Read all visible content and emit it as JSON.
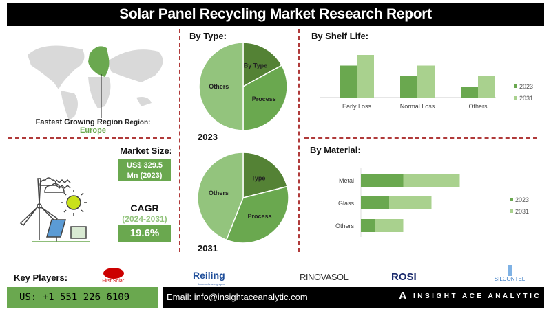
{
  "title": "Solar Panel Recycling Market Research Report",
  "region": {
    "label": "Fastest Growing Region",
    "suffix": "Region:",
    "value": "Europe"
  },
  "market_size": {
    "label": "Market Size:",
    "value_line1": "US$ 329.5",
    "value_line2": "Mn (2023)"
  },
  "cagr": {
    "label": "CAGR",
    "period": "(2024-2031)",
    "value": "19.6%"
  },
  "colors": {
    "dark_green": "#548235",
    "mid_green": "#6aa84f",
    "light_green": "#93c47d",
    "pale_green": "#a9d18e",
    "divider_red": "#b03a3a"
  },
  "chart_data": [
    {
      "type": "pie",
      "title": "By Type:",
      "year": "2023",
      "slices": [
        {
          "label": "By Type",
          "value": 17,
          "color": "#548235"
        },
        {
          "label": "Process",
          "value": 33,
          "color": "#6aa84f"
        },
        {
          "label": "Others",
          "value": 50,
          "color": "#93c47d"
        }
      ]
    },
    {
      "type": "pie",
      "year": "2031",
      "slices": [
        {
          "label": "Type",
          "value": 21,
          "color": "#548235"
        },
        {
          "label": "Process",
          "value": 35,
          "color": "#6aa84f"
        },
        {
          "label": "Others",
          "value": 44,
          "color": "#93c47d"
        }
      ]
    },
    {
      "type": "bar",
      "title": "By Shelf Life:",
      "categories": [
        "Early Loss",
        "Normal Loss",
        "Others"
      ],
      "series": [
        {
          "name": "2023",
          "values": [
            3,
            2,
            1
          ],
          "color": "#6aa84f"
        },
        {
          "name": "2031",
          "values": [
            4,
            3,
            2
          ],
          "color": "#a9d18e"
        }
      ],
      "legend": "right"
    },
    {
      "type": "bar",
      "orientation": "horizontal",
      "stacked": true,
      "title": "By Material:",
      "categories": [
        "Metal",
        "Glass",
        "Others"
      ],
      "series": [
        {
          "name": "2023",
          "values": [
            3,
            2,
            1
          ],
          "color": "#6aa84f"
        },
        {
          "name": "2031",
          "values": [
            4,
            3,
            2
          ],
          "color": "#a9d18e"
        }
      ],
      "legend": "right"
    }
  ],
  "key_players": {
    "label": "Key Players:",
    "companies": [
      "First Solar.",
      "Reiling",
      "Unternehmensgruppe",
      "RINOVASOL",
      "ROSI",
      "SILCONTEL"
    ]
  },
  "footer": {
    "phone": "US: +1 551 226 6109",
    "email": "Email: info@insightaceanalytic.com",
    "brand": "INSIGHT ACE ANALYTIC"
  }
}
